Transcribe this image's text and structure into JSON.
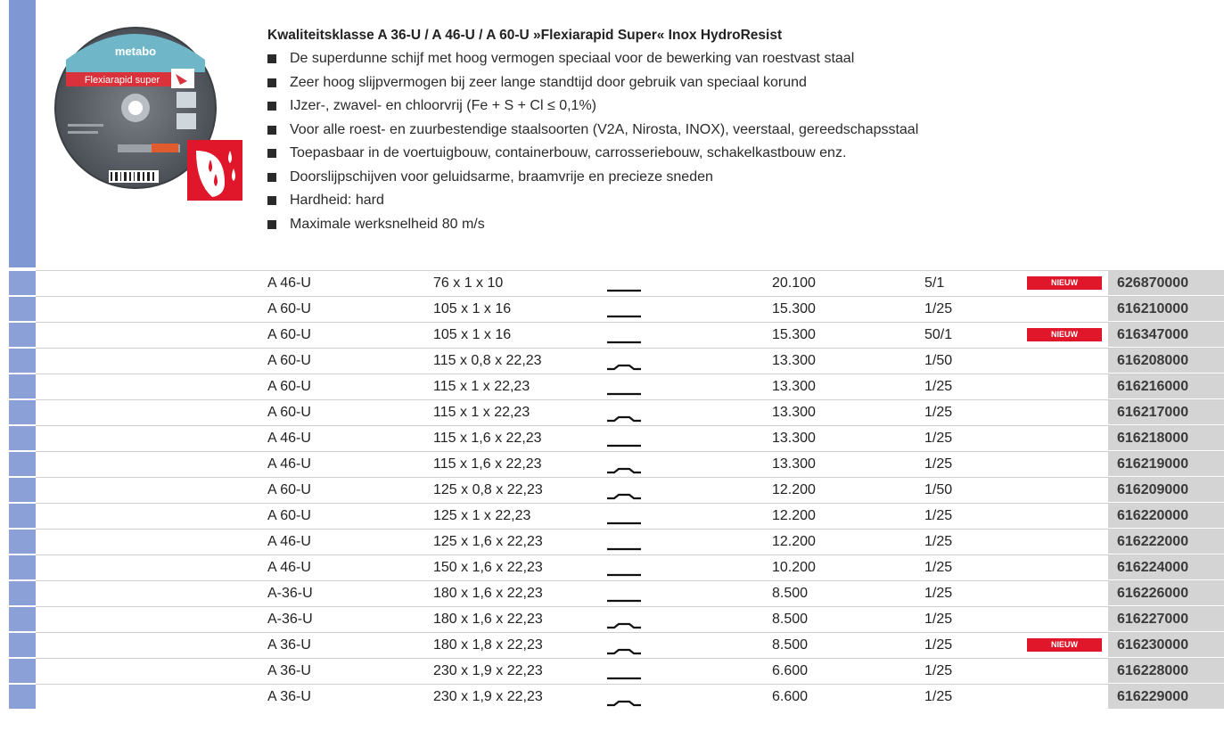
{
  "product": {
    "brand_label": "metabo",
    "image_label": "Flexiarapid super",
    "heading": "Kwaliteitsklasse A 36-U / A 46-U / A 60-U »Flexiarapid Super« Inox HydroResist",
    "features": [
      "De superdunne schijf met hoog vermogen speciaal voor de bewerking van roestvast staal",
      "Zeer hoog slijpvermogen bij zeer lange standtijd door gebruik van speciaal korund",
      "IJzer-, zwavel- en chloorvrij (Fe + S + Cl ≤ 0,1%)",
      "Voor alle roest- en zuurbestendige staalsoorten (V2A, Nirosta, INOX), veerstaal, gereedschapsstaal",
      "Toepasbaar in de voertuigbouw, containerbouw, carrosseriebouw, schakelkastbouw enz.",
      "Doorslijpschijven voor geluidsarme, braamvrije en precieze sneden",
      "Hardheid: hard",
      "Maximale werksnelheid 80 m/s"
    ]
  },
  "colors": {
    "accent_bar": "#7f97d2",
    "badge": "#e0172b",
    "article_bg": "#d4d4d4"
  },
  "rows": [
    {
      "grade": "A 46-U",
      "dimensions": "76 x 1 x 10",
      "shape": "straight",
      "speed": "20.100",
      "pack": "5/1",
      "badge": "NIEUW",
      "article": "626870000"
    },
    {
      "grade": "A 60-U",
      "dimensions": "105 x 1 x 16",
      "shape": "straight",
      "speed": "15.300",
      "pack": "1/25",
      "badge": "",
      "article": "616210000"
    },
    {
      "grade": "A 60-U",
      "dimensions": "105 x 1 x 16",
      "shape": "straight",
      "speed": "15.300",
      "pack": "50/1",
      "badge": "NIEUW",
      "article": "616347000"
    },
    {
      "grade": "A 60-U",
      "dimensions": "115 x 0,8 x 22,23",
      "shape": "depressed",
      "speed": "13.300",
      "pack": "1/50",
      "badge": "",
      "article": "616208000"
    },
    {
      "grade": "A 60-U",
      "dimensions": "115 x 1 x 22,23",
      "shape": "straight",
      "speed": "13.300",
      "pack": "1/25",
      "badge": "",
      "article": "616216000"
    },
    {
      "grade": "A 60-U",
      "dimensions": "115 x 1 x 22,23",
      "shape": "depressed",
      "speed": "13.300",
      "pack": "1/25",
      "badge": "",
      "article": "616217000"
    },
    {
      "grade": "A 46-U",
      "dimensions": "115 x 1,6 x 22,23",
      "shape": "straight",
      "speed": "13.300",
      "pack": "1/25",
      "badge": "",
      "article": "616218000"
    },
    {
      "grade": "A 46-U",
      "dimensions": "115 x 1,6 x 22,23",
      "shape": "depressed",
      "speed": "13.300",
      "pack": "1/25",
      "badge": "",
      "article": "616219000"
    },
    {
      "grade": "A 60-U",
      "dimensions": "125 x 0,8 x 22,23",
      "shape": "depressed",
      "speed": "12.200",
      "pack": "1/50",
      "badge": "",
      "article": "616209000"
    },
    {
      "grade": "A 60-U",
      "dimensions": "125 x 1 x 22,23",
      "shape": "straight",
      "speed": "12.200",
      "pack": "1/25",
      "badge": "",
      "article": "616220000"
    },
    {
      "grade": "A 46-U",
      "dimensions": "125 x 1,6 x 22,23",
      "shape": "straight",
      "speed": "12.200",
      "pack": "1/25",
      "badge": "",
      "article": "616222000"
    },
    {
      "grade": "A 46-U",
      "dimensions": "150 x 1,6 x 22,23",
      "shape": "straight",
      "speed": "10.200",
      "pack": "1/25",
      "badge": "",
      "article": "616224000"
    },
    {
      "grade": "A-36-U",
      "dimensions": "180 x 1,6 x 22,23",
      "shape": "straight",
      "speed": "8.500",
      "pack": "1/25",
      "badge": "",
      "article": "616226000"
    },
    {
      "grade": "A-36-U",
      "dimensions": "180 x 1,6 x 22,23",
      "shape": "depressed",
      "speed": "8.500",
      "pack": "1/25",
      "badge": "",
      "article": "616227000"
    },
    {
      "grade": "A 36-U",
      "dimensions": "180 x 1,8 x 22,23",
      "shape": "depressed",
      "speed": "8.500",
      "pack": "1/25",
      "badge": "NIEUW",
      "article": "616230000"
    },
    {
      "grade": "A 36-U",
      "dimensions": "230 x 1,9 x 22,23",
      "shape": "straight",
      "speed": "6.600",
      "pack": "1/25",
      "badge": "",
      "article": "616228000"
    },
    {
      "grade": "A 36-U",
      "dimensions": "230 x 1,9 x 22,23",
      "shape": "depressed",
      "speed": "6.600",
      "pack": "1/25",
      "badge": "",
      "article": "616229000"
    }
  ]
}
